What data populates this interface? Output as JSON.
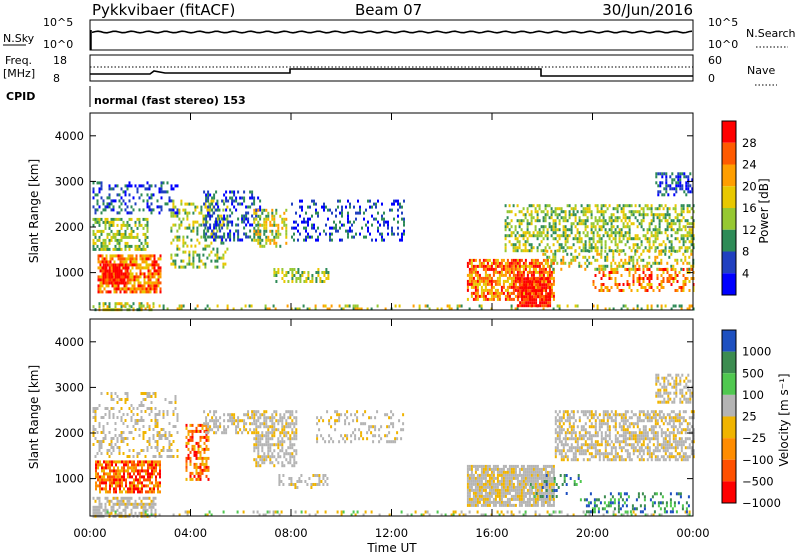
{
  "header": {
    "station": "Pykkvibaer (fitACF)",
    "beam": "Beam 07",
    "date": "30/Jun/2016"
  },
  "panels": {
    "nsky_label": "N.Sky",
    "nsky_ticks": [
      "10^5",
      "10^0"
    ],
    "nsearch_label": "N.Search",
    "nsearch_ticks": [
      "10^5",
      "10^0"
    ],
    "freq_label_1": "Freq.",
    "freq_label_2": "[MHz]",
    "freq_ticks": [
      "18",
      "8"
    ],
    "nave_label": "Nave",
    "nave_ticks": [
      "60",
      "0"
    ],
    "cpid_label": "CPID",
    "cpid_text": "normal (fast stereo) 153"
  },
  "chart_data": [
    {
      "type": "heatmap",
      "name": "power",
      "ylabel": "Slant Range [km]",
      "yticks": [
        "4000",
        "3000",
        "2000",
        "1000"
      ],
      "ylim": [
        180,
        4500
      ],
      "colorbar_label": "Power [dB]",
      "colorbar_ticks": [
        "28",
        "24",
        "20",
        "16",
        "12",
        "8",
        "4"
      ],
      "colors": [
        "#ff0000",
        "#ff5a00",
        "#ff9e00",
        "#e8c800",
        "#96c832",
        "#2e8b57",
        "#2040c0",
        "#0000ff"
      ]
    },
    {
      "type": "heatmap",
      "name": "velocity",
      "ylabel": "Slant Range [km]",
      "yticks": [
        "4000",
        "3000",
        "2000",
        "1000"
      ],
      "ylim": [
        180,
        4500
      ],
      "colorbar_label": "Velocity [m s⁻¹]",
      "colorbar_ticks": [
        "1000",
        "500",
        "100",
        "25",
        "−25",
        "−100",
        "−500",
        "−1000"
      ],
      "colors": [
        "#1e50c0",
        "#3c8c50",
        "#50c850",
        "#b4b4b4",
        "#f0b400",
        "#ff8c00",
        "#ff5000",
        "#ff0000"
      ]
    }
  ],
  "xaxis": {
    "ticks": [
      "00:00",
      "04:00",
      "08:00",
      "12:00",
      "16:00",
      "20:00",
      "00:00"
    ],
    "label": "Time UT"
  }
}
